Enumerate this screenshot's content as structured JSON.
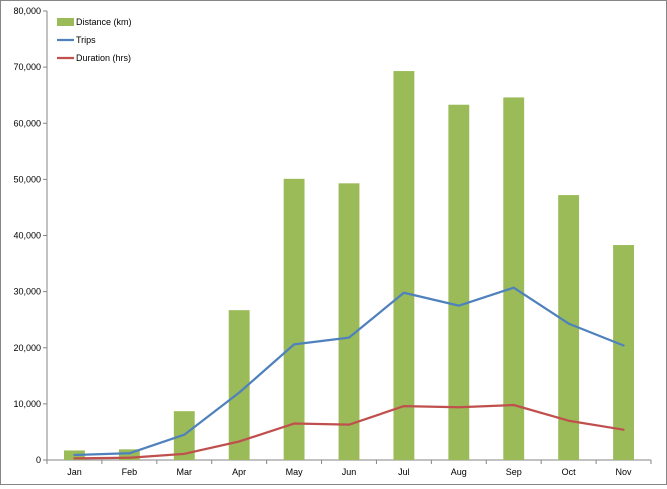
{
  "chart_data": {
    "type": "bar",
    "categories": [
      "Jan",
      "Feb",
      "Mar",
      "Apr",
      "May",
      "Jun",
      "Jul",
      "Aug",
      "Sep",
      "Oct",
      "Nov"
    ],
    "series": [
      {
        "name": "Distance (km)",
        "type": "bar",
        "color": "#9BBB59",
        "values": [
          1700,
          1900,
          8700,
          26700,
          50100,
          49300,
          69300,
          63300,
          64600,
          47200,
          38300
        ]
      },
      {
        "name": "Trips",
        "type": "line",
        "color": "#4F81BD",
        "values": [
          900,
          1200,
          4500,
          12000,
          20600,
          21800,
          29800,
          27500,
          30700,
          24300,
          20400
        ]
      },
      {
        "name": "Duration (hrs)",
        "type": "line",
        "color": "#C0504D",
        "values": [
          300,
          400,
          1100,
          3300,
          6500,
          6300,
          9600,
          9400,
          9800,
          7000,
          5400
        ]
      }
    ],
    "y_ticks": [
      "0",
      "10,000",
      "20,000",
      "30,000",
      "40,000",
      "50,000",
      "60,000",
      "70,000",
      "80,000"
    ],
    "ylim": [
      0,
      80000
    ],
    "grid": false,
    "legend_position": "top-left"
  }
}
